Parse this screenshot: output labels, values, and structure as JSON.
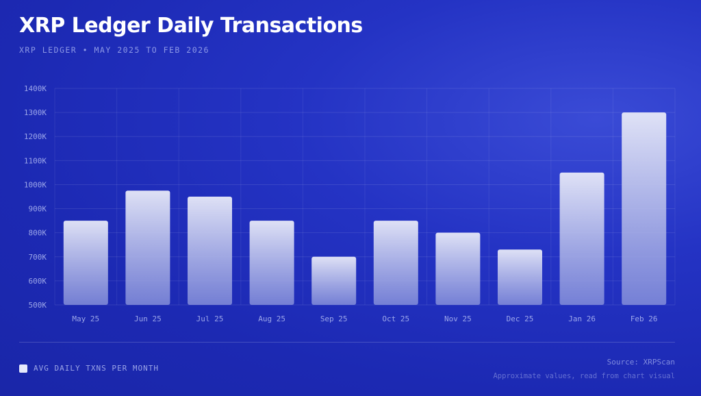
{
  "header": {
    "title": "XRP Ledger Daily Transactions",
    "subtitle": "XRP LEDGER • MAY 2025 TO FEB 2026"
  },
  "legend": {
    "label": "AVG DAILY TXNS PER MONTH"
  },
  "footer": {
    "source": "Source: XRPScan",
    "note": "Approximate values, read from chart visual"
  },
  "colors": {
    "background": "#1f2cb8",
    "bar_top": "#e8eaf8",
    "bar_bottom": "#7f8ad6"
  },
  "chart_data": {
    "type": "bar",
    "categories": [
      "May 25",
      "Jun 25",
      "Jul 25",
      "Aug 25",
      "Sep 25",
      "Oct 25",
      "Nov 25",
      "Dec 25",
      "Jan 26",
      "Feb 26"
    ],
    "series": [
      {
        "name": "AVG DAILY TXNS PER MONTH",
        "values": [
          850000,
          975000,
          950000,
          850000,
          700000,
          850000,
          800000,
          730000,
          1050000,
          1300000
        ]
      }
    ],
    "ylim": [
      500000,
      1400000
    ],
    "yticks": [
      "500K",
      "600K",
      "700K",
      "800K",
      "900K",
      "1000K",
      "1100K",
      "1200K",
      "1300K",
      "1400K"
    ],
    "grid": true,
    "legend_position": "bottom-left"
  }
}
